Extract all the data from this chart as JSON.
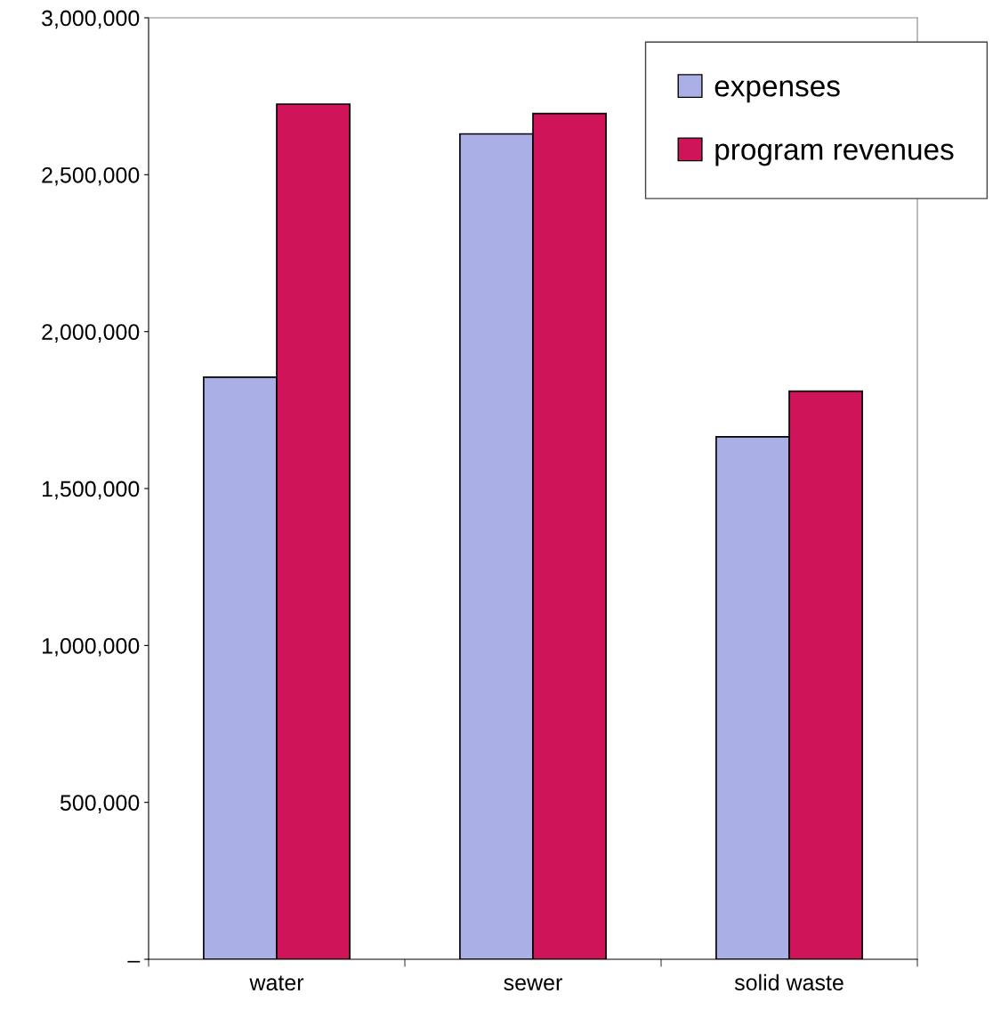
{
  "chart_data": {
    "type": "bar",
    "categories": [
      "water",
      "sewer",
      "solid waste"
    ],
    "series": [
      {
        "name": "expenses",
        "color": "#aab0e6",
        "values": [
          1855000,
          2630000,
          1665000
        ]
      },
      {
        "name": "program revenues",
        "color": "#d0145a",
        "values": [
          2725000,
          2695000,
          1810000
        ]
      }
    ],
    "ylim": [
      0,
      3000000
    ],
    "yticks": [
      {
        "value": 0,
        "label": "–"
      },
      {
        "value": 500000,
        "label": "500,000"
      },
      {
        "value": 1000000,
        "label": "1,000,000"
      },
      {
        "value": 1500000,
        "label": "1,500,000"
      },
      {
        "value": 2000000,
        "label": "2,000,000"
      },
      {
        "value": 2500000,
        "label": "2,500,000"
      },
      {
        "value": 3000000,
        "label": "3,000,000"
      }
    ],
    "grid": false,
    "legend": "top right"
  }
}
